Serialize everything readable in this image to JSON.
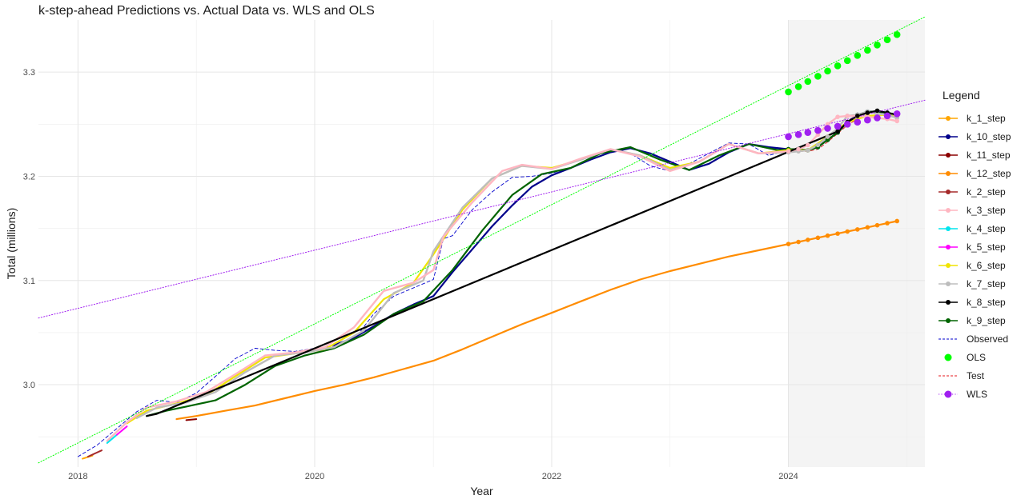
{
  "chart_data": {
    "type": "line",
    "title": "k-step-ahead Predictions vs. Actual Data vs. WLS and OLS",
    "xlabel": "Year",
    "ylabel": "Total (millions)",
    "xlim": [
      "2017-09-01",
      "2025-02-25"
    ],
    "ylim": [
      2.921,
      3.35
    ],
    "x_ticks": [
      "2018",
      "2020",
      "2022",
      "2024"
    ],
    "y_ticks": [
      "3.0",
      "3.1",
      "3.2",
      "3.3"
    ],
    "grid": true,
    "legend_position": "right",
    "shaded_region": [
      "2024-01-01",
      "2025-02-25"
    ],
    "legend": {
      "title": "Legend",
      "entries": [
        "k_1_step",
        "k_10_step",
        "k_11_step",
        "k_12_step",
        "k_2_step",
        "k_3_step",
        "k_4_step",
        "k_5_step",
        "k_6_step",
        "k_7_step",
        "k_8_step",
        "k_9_step",
        "Observed",
        "OLS",
        "Test",
        "WLS"
      ]
    },
    "series": [
      {
        "name": "Observed",
        "color": "#0000cd",
        "style": "dashed",
        "width": 0.9,
        "x": [
          "2018-01-01",
          "2018-03-01",
          "2018-05-01",
          "2018-07-01",
          "2018-09-01",
          "2018-11-01",
          "2019-01-01",
          "2019-03-01",
          "2019-05-01",
          "2019-07-01",
          "2019-09-01",
          "2019-11-01",
          "2020-01-01",
          "2020-03-01",
          "2020-05-01",
          "2020-07-01",
          "2020-09-01",
          "2020-11-01",
          "2021-01-01",
          "2021-02-01",
          "2021-03-01",
          "2021-05-01",
          "2021-07-01",
          "2021-09-01",
          "2021-11-01",
          "2022-01-01",
          "2022-03-01",
          "2022-05-01",
          "2022-07-01",
          "2022-09-01",
          "2022-11-01",
          "2023-01-01",
          "2023-03-01",
          "2023-05-01",
          "2023-07-01",
          "2023-09-01",
          "2023-11-01",
          "2024-01-01"
        ],
        "values": [
          2.931,
          2.942,
          2.958,
          2.974,
          2.985,
          2.983,
          2.992,
          3.008,
          3.025,
          3.035,
          3.033,
          3.032,
          3.035,
          3.037,
          3.043,
          3.068,
          3.085,
          3.093,
          3.101,
          3.14,
          3.143,
          3.168,
          3.185,
          3.199,
          3.2,
          3.203,
          3.208,
          3.218,
          3.226,
          3.222,
          3.21,
          3.205,
          3.212,
          3.222,
          3.232,
          3.231,
          3.22,
          3.225
        ]
      },
      {
        "name": "Test",
        "color": "#e41a1c",
        "style": "dashed",
        "width": 0.9,
        "x": [
          "2024-01-01",
          "2024-02-01",
          "2024-03-01",
          "2024-04-01",
          "2024-05-01",
          "2024-06-01",
          "2024-07-01",
          "2024-08-01",
          "2024-09-01",
          "2024-10-01",
          "2024-11-01",
          "2024-12-01"
        ],
        "values": [
          3.223,
          3.224,
          3.224,
          3.226,
          3.233,
          3.241,
          3.249,
          3.255,
          3.258,
          3.259,
          3.258,
          3.256
        ]
      },
      {
        "name": "k_12_step",
        "color": "#ff8c00",
        "style": "solid",
        "width": 2.2,
        "markers_from": "2024-01-01",
        "x": [
          "2018-11-01",
          "2019-01-01",
          "2019-04-01",
          "2019-07-01",
          "2019-10-01",
          "2020-01-01",
          "2020-04-01",
          "2020-07-01",
          "2020-10-01",
          "2021-01-01",
          "2021-04-01",
          "2021-07-01",
          "2021-10-01",
          "2022-01-01",
          "2022-04-01",
          "2022-07-01",
          "2022-10-01",
          "2023-01-01",
          "2023-04-01",
          "2023-07-01",
          "2023-10-01",
          "2024-01-01",
          "2024-02-01",
          "2024-03-01",
          "2024-04-01",
          "2024-05-01",
          "2024-06-01",
          "2024-07-01",
          "2024-08-01",
          "2024-09-01",
          "2024-10-01",
          "2024-11-01",
          "2024-12-01"
        ],
        "values": [
          2.967,
          2.97,
          2.975,
          2.98,
          2.987,
          2.994,
          3.0,
          3.007,
          3.015,
          3.023,
          3.034,
          3.046,
          3.058,
          3.069,
          3.08,
          3.091,
          3.101,
          3.109,
          3.116,
          3.123,
          3.129,
          3.135,
          3.137,
          3.139,
          3.141,
          3.143,
          3.145,
          3.147,
          3.149,
          3.151,
          3.153,
          3.155,
          3.157
        ]
      },
      {
        "name": "k_10_step",
        "color": "#00008b",
        "style": "solid",
        "width": 2.2,
        "markers_from": "2024-01-01",
        "x": [
          "2020-03-01",
          "2020-05-01",
          "2020-07-01",
          "2020-09-01",
          "2020-11-01",
          "2021-01-01",
          "2021-03-01",
          "2021-05-01",
          "2021-07-01",
          "2021-09-01",
          "2021-11-01",
          "2022-01-01",
          "2022-03-01",
          "2022-05-01",
          "2022-07-01",
          "2022-09-01",
          "2022-11-01",
          "2023-01-01",
          "2023-03-01",
          "2023-05-01",
          "2023-07-01",
          "2023-09-01",
          "2023-11-01",
          "2024-01-01",
          "2024-02-01",
          "2024-03-01",
          "2024-04-01",
          "2024-05-01",
          "2024-06-01",
          "2024-07-01",
          "2024-08-01",
          "2024-09-01",
          "2024-10-01",
          "2024-11-01",
          "2024-12-01"
        ],
        "values": [
          3.038,
          3.045,
          3.056,
          3.068,
          3.077,
          3.085,
          3.108,
          3.13,
          3.152,
          3.172,
          3.19,
          3.201,
          3.208,
          3.216,
          3.223,
          3.227,
          3.222,
          3.214,
          3.206,
          3.212,
          3.223,
          3.231,
          3.228,
          3.226,
          3.226,
          3.225,
          3.228,
          3.235,
          3.242,
          3.252,
          3.259,
          3.262,
          3.262,
          3.261,
          3.259
        ]
      },
      {
        "name": "k_9_step",
        "color": "#006400",
        "style": "solid",
        "width": 2.2,
        "markers_from": "2024-01-01",
        "x": [
          "2018-08-01",
          "2018-10-01",
          "2018-12-01",
          "2019-03-01",
          "2019-06-01",
          "2019-09-01",
          "2019-12-01",
          "2020-03-01",
          "2020-06-01",
          "2020-09-01",
          "2020-12-01",
          "2021-03-01",
          "2021-06-01",
          "2021-09-01",
          "2021-12-01",
          "2022-03-01",
          "2022-06-01",
          "2022-09-01",
          "2022-12-01",
          "2023-03-01",
          "2023-06-01",
          "2023-09-01",
          "2023-12-01",
          "2024-01-01",
          "2024-02-01",
          "2024-03-01",
          "2024-04-01",
          "2024-05-01",
          "2024-06-01",
          "2024-07-01",
          "2024-08-01",
          "2024-09-01",
          "2024-10-01",
          "2024-11-01",
          "2024-12-01"
        ],
        "values": [
          2.97,
          2.975,
          2.979,
          2.985,
          3.0,
          3.018,
          3.028,
          3.035,
          3.048,
          3.068,
          3.08,
          3.11,
          3.148,
          3.182,
          3.202,
          3.208,
          3.222,
          3.228,
          3.216,
          3.206,
          3.22,
          3.231,
          3.225,
          3.226,
          3.226,
          3.225,
          3.228,
          3.235,
          3.242,
          3.252,
          3.259,
          3.262,
          3.262,
          3.261,
          3.259
        ]
      },
      {
        "name": "k_6_step",
        "color": "#f0e400",
        "style": "solid",
        "width": 2.2,
        "markers_from": "2024-01-01",
        "x": [
          "2018-06-01",
          "2018-08-01",
          "2018-11-01",
          "2019-02-01",
          "2019-05-01",
          "2019-08-01",
          "2019-11-01",
          "2020-02-01",
          "2020-05-01",
          "2020-08-01",
          "2020-11-01",
          "2021-01-01",
          "2021-04-01",
          "2021-07-01",
          "2021-10-01",
          "2022-01-01",
          "2022-04-01",
          "2022-07-01",
          "2022-10-01",
          "2023-01-01",
          "2023-04-01",
          "2023-07-01",
          "2023-10-01",
          "2024-01-01",
          "2024-03-01",
          "2024-05-01",
          "2024-07-01",
          "2024-09-01",
          "2024-11-01",
          "2024-12-01"
        ],
        "values": [
          2.963,
          2.975,
          2.982,
          2.99,
          3.008,
          3.026,
          3.03,
          3.034,
          3.05,
          3.082,
          3.098,
          3.125,
          3.168,
          3.198,
          3.21,
          3.208,
          3.216,
          3.226,
          3.22,
          3.208,
          3.214,
          3.231,
          3.222,
          3.225,
          3.225,
          3.238,
          3.252,
          3.258,
          3.259,
          3.257
        ]
      },
      {
        "name": "k_7_step",
        "color": "#bdbdbd",
        "style": "solid",
        "width": 2.4,
        "markers_from": "2024-01-01",
        "x": [
          "2018-07-01",
          "2018-09-01",
          "2018-12-01",
          "2019-03-01",
          "2019-06-01",
          "2019-09-01",
          "2019-12-01",
          "2020-03-01",
          "2020-06-01",
          "2020-09-01",
          "2020-12-01",
          "2021-01-01",
          "2021-04-01",
          "2021-07-01",
          "2021-10-01",
          "2022-01-01",
          "2022-04-01",
          "2022-07-01",
          "2022-10-01",
          "2023-01-01",
          "2023-04-01",
          "2023-07-01",
          "2023-10-01",
          "2024-01-01",
          "2024-02-01",
          "2024-03-01",
          "2024-04-01",
          "2024-05-01",
          "2024-06-01",
          "2024-07-01",
          "2024-08-01",
          "2024-09-01",
          "2024-10-01",
          "2024-11-01",
          "2024-12-01"
        ],
        "values": [
          2.968,
          2.978,
          2.983,
          2.993,
          3.012,
          3.028,
          3.031,
          3.036,
          3.052,
          3.088,
          3.1,
          3.128,
          3.17,
          3.198,
          3.21,
          3.207,
          3.216,
          3.226,
          3.22,
          3.206,
          3.214,
          3.231,
          3.222,
          3.223,
          3.224,
          3.225,
          3.23,
          3.238,
          3.246,
          3.258,
          3.259,
          3.262,
          3.26,
          3.259,
          3.256
        ]
      },
      {
        "name": "k_3_step",
        "color": "#ffb6c1",
        "style": "solid",
        "width": 2.4,
        "markers_from": "2024-01-01",
        "x": [
          "2018-04-01",
          "2018-06-01",
          "2018-08-01",
          "2018-11-01",
          "2019-02-01",
          "2019-05-01",
          "2019-08-01",
          "2019-11-01",
          "2020-02-01",
          "2020-05-01",
          "2020-08-01",
          "2020-11-01",
          "2021-01-01",
          "2021-02-01",
          "2021-05-01",
          "2021-08-01",
          "2021-10-01",
          "2022-01-01",
          "2022-04-01",
          "2022-07-01",
          "2022-10-01",
          "2023-01-01",
          "2023-04-01",
          "2023-07-01",
          "2023-10-01",
          "2024-01-01",
          "2024-02-01",
          "2024-03-01",
          "2024-04-01",
          "2024-05-01",
          "2024-06-01",
          "2024-07-01",
          "2024-08-01",
          "2024-09-01",
          "2024-10-01",
          "2024-11-01",
          "2024-12-01"
        ],
        "values": [
          2.946,
          2.964,
          2.978,
          2.984,
          2.993,
          3.01,
          3.028,
          3.031,
          3.036,
          3.055,
          3.09,
          3.098,
          3.11,
          3.142,
          3.175,
          3.205,
          3.211,
          3.207,
          3.217,
          3.226,
          3.219,
          3.205,
          3.214,
          3.231,
          3.222,
          3.224,
          3.226,
          3.23,
          3.24,
          3.25,
          3.257,
          3.258,
          3.258,
          3.257,
          3.256,
          3.255,
          3.253
        ]
      },
      {
        "name": "k_8_step",
        "color": "#000000",
        "style": "solid",
        "width": 2.2,
        "markers_from": "2024-01-01",
        "x": [
          "2018-08-01",
          "2018-09-01",
          "2024-06-01",
          "2024-07-01",
          "2024-08-01",
          "2024-09-01",
          "2024-10-01",
          "2024-11-01",
          "2024-12-01"
        ],
        "values": [
          2.97,
          2.972,
          3.243,
          3.252,
          3.258,
          3.261,
          3.263,
          3.261,
          3.259
        ]
      },
      {
        "name": "k_11_step",
        "color": "#8b0000",
        "style": "solid",
        "width": 2.0,
        "x": [
          "2018-12-01",
          "2019-01-01"
        ],
        "values": [
          2.966,
          2.967
        ]
      },
      {
        "name": "k_1_step",
        "color": "#ffa500",
        "style": "solid",
        "width": 2.0,
        "x": [
          "2018-01-15",
          "2018-02-15"
        ],
        "values": [
          2.929,
          2.932
        ]
      },
      {
        "name": "k_2_step",
        "color": "#a52a2a",
        "style": "solid",
        "width": 2.0,
        "x": [
          "2018-02-01",
          "2018-03-15"
        ],
        "values": [
          2.931,
          2.937
        ]
      },
      {
        "name": "k_4_step",
        "color": "#00e5ee",
        "style": "solid",
        "width": 2.0,
        "x": [
          "2018-04-01",
          "2018-05-01"
        ],
        "values": [
          2.944,
          2.952
        ]
      },
      {
        "name": "k_5_step",
        "color": "#ff00ff",
        "style": "solid",
        "width": 2.0,
        "x": [
          "2018-05-01",
          "2018-06-01"
        ],
        "values": [
          2.952,
          2.96
        ]
      },
      {
        "name": "OLS",
        "color": "#00ff00",
        "style": "dotted",
        "width": 1.0,
        "markers_from": "2024-01-01",
        "x": [
          "2017-09-01",
          "2025-02-25"
        ],
        "values": [
          2.925,
          3.353
        ],
        "points_x": [
          "2024-01-01",
          "2024-02-01",
          "2024-03-01",
          "2024-04-01",
          "2024-05-01",
          "2024-06-01",
          "2024-07-01",
          "2024-08-01",
          "2024-09-01",
          "2024-10-01",
          "2024-11-01",
          "2024-12-01"
        ],
        "points_y": [
          3.281,
          3.286,
          3.291,
          3.296,
          3.301,
          3.306,
          3.311,
          3.316,
          3.321,
          3.326,
          3.331,
          3.336
        ]
      },
      {
        "name": "WLS",
        "color": "#a020f0",
        "style": "dotted",
        "width": 1.0,
        "x": [
          "2017-09-01",
          "2025-02-25"
        ],
        "values": [
          3.064,
          3.273
        ],
        "points_x": [
          "2024-01-01",
          "2024-02-01",
          "2024-03-01",
          "2024-04-01",
          "2024-05-01",
          "2024-06-01",
          "2024-07-01",
          "2024-08-01",
          "2024-09-01",
          "2024-10-01",
          "2024-11-01",
          "2024-12-01"
        ],
        "points_y": [
          3.238,
          3.24,
          3.242,
          3.244,
          3.246,
          3.248,
          3.25,
          3.252,
          3.254,
          3.256,
          3.258,
          3.26
        ]
      }
    ]
  }
}
